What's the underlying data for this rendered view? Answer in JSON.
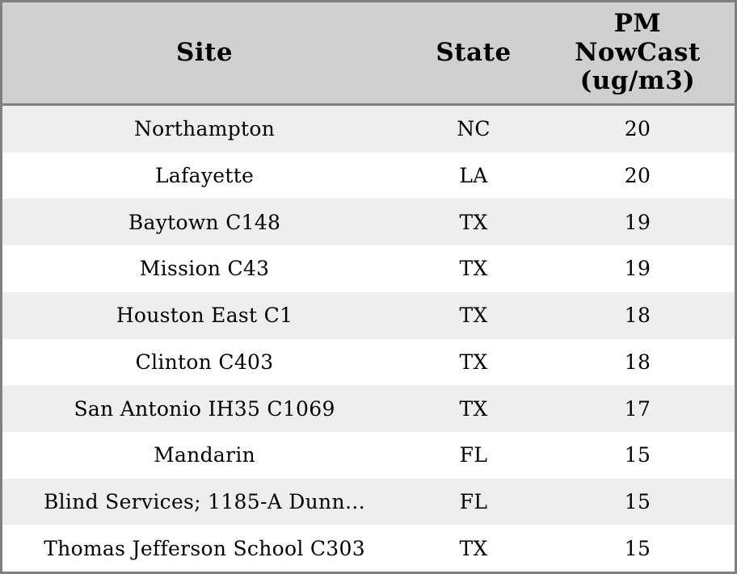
{
  "chart_data": {
    "type": "table",
    "columns": [
      {
        "label": "Site"
      },
      {
        "label": "State"
      },
      {
        "label": "PM NowCast (ug/m3)",
        "display_lines": [
          "PM",
          "NowCast",
          "(ug/m3)"
        ]
      }
    ],
    "rows": [
      {
        "site": "Northampton",
        "state": "NC",
        "pm_nowcast": 20
      },
      {
        "site": "Lafayette",
        "state": "LA",
        "pm_nowcast": 20
      },
      {
        "site": "Baytown C148",
        "state": "TX",
        "pm_nowcast": 19
      },
      {
        "site": "Mission C43",
        "state": "TX",
        "pm_nowcast": 19
      },
      {
        "site": "Houston East C1",
        "state": "TX",
        "pm_nowcast": 18
      },
      {
        "site": "Clinton C403",
        "state": "TX",
        "pm_nowcast": 18
      },
      {
        "site": "San Antonio IH35 C1069",
        "state": "TX",
        "pm_nowcast": 17
      },
      {
        "site": "Mandarin",
        "state": "FL",
        "pm_nowcast": 15
      },
      {
        "site": "Blind Services; 1185-A Dunn…",
        "state": "FL",
        "pm_nowcast": 15
      },
      {
        "site": "Thomas Jefferson School C303",
        "state": "TX",
        "pm_nowcast": 15
      }
    ]
  },
  "colors": {
    "header_bg": "#d0d0d0",
    "row_stripe_bg": "#eeeeee",
    "row_bg": "#ffffff",
    "border": "#808080",
    "text": "#000000"
  }
}
